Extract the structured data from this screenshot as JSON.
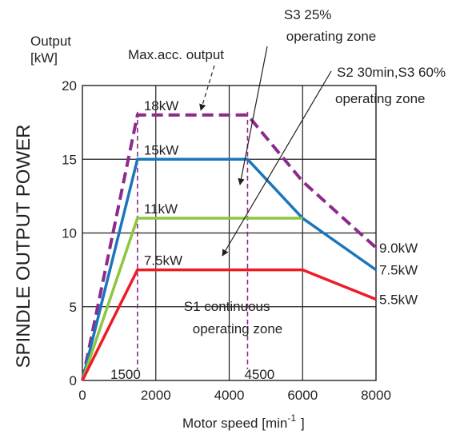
{
  "chart_data": {
    "type": "line",
    "ylabel": "SPINDLE OUTPUT POWER",
    "ylabel_unit": "Output\n[kW]",
    "xlabel": "Motor speed [min",
    "xlabel_sup": "-1",
    "xlabel_end": "]",
    "xlim": [
      0,
      8000
    ],
    "ylim": [
      0,
      20
    ],
    "xticks": [
      0,
      2000,
      4000,
      6000,
      8000
    ],
    "yticks": [
      0,
      5,
      10,
      15,
      20
    ],
    "grid": true,
    "series": [
      {
        "name": "Max.acc. output",
        "color": "#8e2a8e",
        "dashed": true,
        "x": [
          0,
          1500,
          4500,
          6000,
          8000
        ],
        "y": [
          0,
          18,
          18,
          13.5,
          9.0
        ]
      },
      {
        "name": "S3 25% operating zone",
        "color": "#1b75bb",
        "dashed": false,
        "x": [
          0,
          1500,
          4500,
          6000,
          8000
        ],
        "y": [
          0,
          15,
          15,
          11,
          7.5
        ]
      },
      {
        "name": "S2 30min,S3 60% operating zone",
        "color": "#8dc63f",
        "dashed": false,
        "x": [
          0,
          1500,
          6000
        ],
        "y": [
          0,
          11,
          11
        ]
      },
      {
        "name": "S1 continuous operating zone",
        "color": "#ed1c24",
        "dashed": false,
        "x": [
          0,
          1500,
          6000,
          8000
        ],
        "y": [
          0,
          7.5,
          7.5,
          5.5
        ]
      }
    ],
    "vlines": [
      {
        "x": 1500,
        "label": "1500"
      },
      {
        "x": 4500,
        "label": "4500"
      }
    ],
    "vline_color": "#8e2a8e",
    "point_labels": [
      {
        "x": 1500,
        "y": 18,
        "text": "18kW"
      },
      {
        "x": 1500,
        "y": 15,
        "text": "15kW"
      },
      {
        "x": 1500,
        "y": 11,
        "text": "11kW"
      },
      {
        "x": 1500,
        "y": 7.5,
        "text": "7.5kW"
      }
    ],
    "end_labels": [
      {
        "x": 8000,
        "y": 9.0,
        "text": "9.0kW"
      },
      {
        "x": 8000,
        "y": 7.5,
        "text": "7.5kW"
      },
      {
        "x": 8000,
        "y": 5.5,
        "text": "5.5kW"
      }
    ],
    "annotations": [
      {
        "text": [
          "Max.acc. output"
        ],
        "target_x": 3300,
        "target_y": 18
      },
      {
        "text": [
          "S3 25%",
          "operating zone"
        ],
        "target_x": 4500,
        "target_y": 13.4
      },
      {
        "text": [
          "S2 30min,S3 60%",
          "operating zone"
        ],
        "target_x": 3900,
        "target_y": 8
      },
      {
        "text": [
          "S1 continuous",
          "operating zone"
        ]
      }
    ]
  }
}
